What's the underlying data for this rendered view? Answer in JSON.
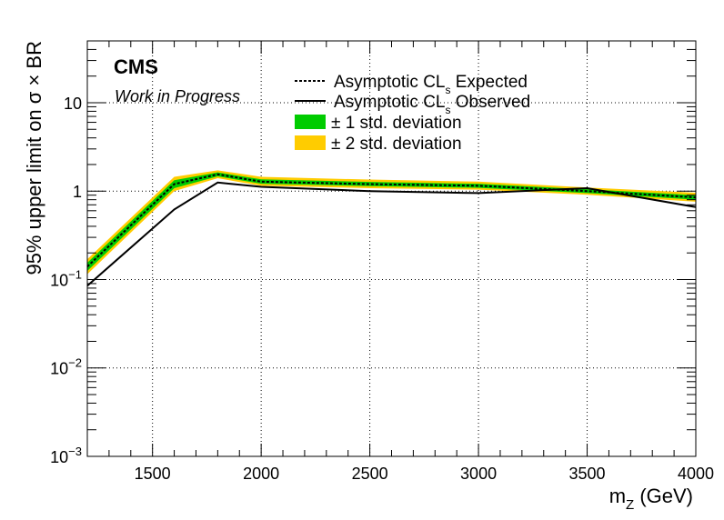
{
  "chart_data": {
    "type": "line",
    "experiment_label": "CMS",
    "status_label": "Work in Progress",
    "xlabel": "m",
    "xlabel_sub": "Z",
    "xlabel_unit": " (GeV)",
    "ylabel": "95% upper limit on  σ × BR",
    "xlim": [
      1200,
      4000
    ],
    "ylim": [
      0.001,
      50
    ],
    "yscale": "log",
    "grid": true,
    "legend_position": "top-center",
    "x_ticks": [
      1500,
      2000,
      2500,
      3000,
      3500,
      4000
    ],
    "x_tick_labels": [
      "1500",
      "2000",
      "2500",
      "3000",
      "3500",
      "4000"
    ],
    "y_ticks": [
      {
        "value": 0.001,
        "base": "10",
        "exp": "−3"
      },
      {
        "value": 0.01,
        "base": "10",
        "exp": "−2"
      },
      {
        "value": 0.1,
        "base": "10",
        "exp": "−1"
      },
      {
        "value": 1,
        "base": "1",
        "exp": ""
      },
      {
        "value": 10,
        "base": "10",
        "exp": ""
      }
    ],
    "legend": {
      "expected": {
        "text": "Asymptotic CL",
        "sub": "s",
        "suffix": " Expected"
      },
      "observed": {
        "text": "Asymptotic CL",
        "sub": "s",
        "suffix": " Observed"
      },
      "band1": "± 1 std. deviation",
      "band2": "± 2 std. deviation"
    },
    "colors": {
      "band1": "#00cc00",
      "band2": "#ffcc00",
      "expected": "#000000",
      "observed": "#000000",
      "grid": "#000000"
    },
    "x": [
      1200,
      1600,
      1800,
      2000,
      2500,
      3000,
      3500,
      4000
    ],
    "series": [
      {
        "name": "Asymptotic CLs Expected",
        "values": [
          0.14,
          1.2,
          1.55,
          1.28,
          1.2,
          1.15,
          1.0,
          0.85
        ]
      },
      {
        "name": "Asymptotic CLs Observed",
        "values": [
          0.085,
          0.62,
          1.25,
          1.12,
          1.0,
          0.95,
          1.08,
          0.66
        ]
      }
    ],
    "band1_low": [
      0.125,
      1.08,
      1.47,
      1.21,
      1.14,
      1.09,
      0.95,
      0.8
    ],
    "band1_high": [
      0.155,
      1.33,
      1.63,
      1.36,
      1.27,
      1.21,
      1.05,
      0.9
    ],
    "band2_low": [
      0.115,
      1.0,
      1.4,
      1.15,
      1.08,
      1.04,
      0.91,
      0.76
    ],
    "band2_high": [
      0.17,
      1.45,
      1.72,
      1.45,
      1.35,
      1.28,
      1.1,
      0.96
    ]
  }
}
